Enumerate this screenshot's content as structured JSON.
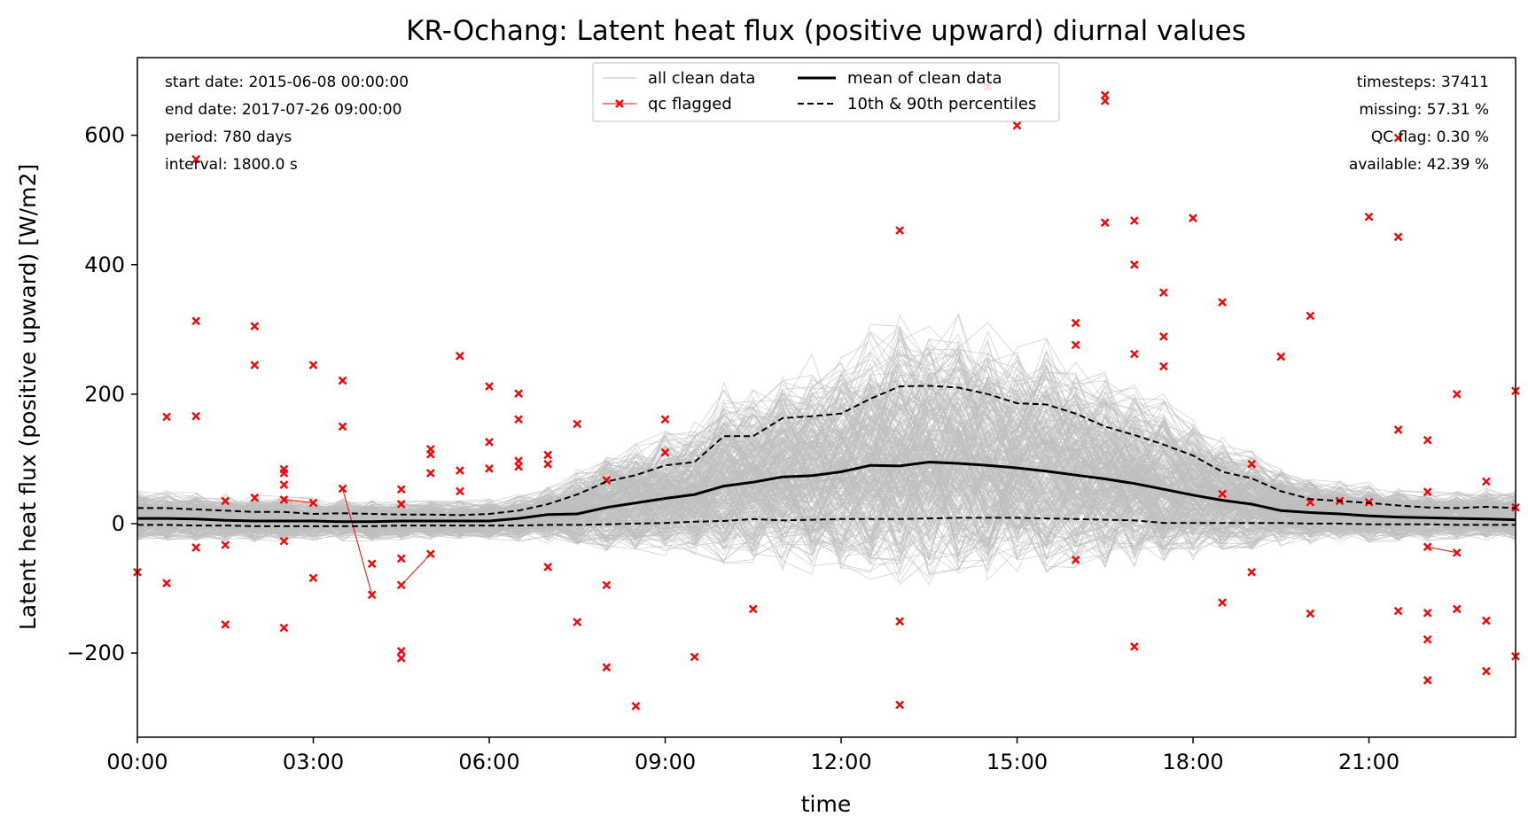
{
  "colors": {
    "clean": "#bfbfbf",
    "flagged": "#ff0000",
    "mean": "#000000",
    "percentile": "#000000"
  },
  "chart_data": {
    "type": "line",
    "title": "KR-Ochang: Latent heat flux (positive upward) diurnal values",
    "xlabel": "time",
    "ylabel": "Latent heat flux (positive upward) [W/m2]",
    "xlim": [
      0,
      23.5
    ],
    "ylim": [
      -330,
      720
    ],
    "x_ticks": [
      {
        "value": 0,
        "label": "00:00"
      },
      {
        "value": 3,
        "label": "03:00"
      },
      {
        "value": 6,
        "label": "06:00"
      },
      {
        "value": 9,
        "label": "09:00"
      },
      {
        "value": 12,
        "label": "12:00"
      },
      {
        "value": 15,
        "label": "15:00"
      },
      {
        "value": 18,
        "label": "18:00"
      },
      {
        "value": 21,
        "label": "21:00"
      }
    ],
    "y_ticks": [
      {
        "value": -200,
        "label": "−200"
      },
      {
        "value": 0,
        "label": "0"
      },
      {
        "value": 200,
        "label": "200"
      },
      {
        "value": 400,
        "label": "400"
      },
      {
        "value": 600,
        "label": "600"
      }
    ],
    "grid": false,
    "legend": {
      "placement": "top-center",
      "entries": [
        {
          "label": "all clean data",
          "style": "clean"
        },
        {
          "label": "qc flagged",
          "style": "flagged"
        },
        {
          "label": "mean of clean data",
          "style": "mean"
        },
        {
          "label": "10th & 90th percentiles",
          "style": "percentile"
        }
      ]
    },
    "info_left": [
      "start date: 2015-06-08 00:00:00",
      "end date: 2017-07-26 09:00:00",
      "period: 780 days",
      "interval: 1800.0 s"
    ],
    "info_right": [
      "timesteps: 37411",
      "missing: 57.31 %",
      "QC flag: 0.30 %",
      "available: 42.39 %"
    ],
    "x": [
      0,
      0.5,
      1,
      1.5,
      2,
      2.5,
      3,
      3.5,
      4,
      4.5,
      5,
      5.5,
      6,
      6.5,
      7,
      7.5,
      8,
      8.5,
      9,
      9.5,
      10,
      10.5,
      11,
      11.5,
      12,
      12.5,
      13,
      13.5,
      14,
      14.5,
      15,
      15.5,
      16,
      16.5,
      17,
      17.5,
      18,
      18.5,
      19,
      19.5,
      20,
      20.5,
      21,
      21.5,
      22,
      22.5,
      23,
      23.5
    ],
    "series": [
      {
        "name": "mean of clean data",
        "values": [
          8,
          8,
          7,
          5,
          4,
          4,
          4,
          3,
          3,
          4,
          4,
          4,
          4,
          8,
          14,
          15,
          25,
          32,
          39,
          45,
          58,
          64,
          72,
          74,
          80,
          90,
          89,
          95,
          93,
          90,
          86,
          81,
          75,
          69,
          62,
          53,
          44,
          36,
          30,
          20,
          17,
          15,
          12,
          10,
          9,
          8,
          7,
          6
        ]
      },
      {
        "name": "10th percentile",
        "values": [
          -2,
          -2,
          -3,
          -3,
          -4,
          -4,
          -4,
          -4,
          -4,
          -3,
          -3,
          -3,
          -3,
          -3,
          -2,
          -2,
          -1,
          0,
          1,
          3,
          4,
          7,
          5,
          6,
          7,
          7,
          7,
          8,
          9,
          9,
          9,
          8,
          7,
          6,
          5,
          1,
          1,
          1,
          1,
          1,
          0,
          0,
          -1,
          -1,
          -1,
          -2,
          -2,
          -2
        ]
      },
      {
        "name": "90th percentile",
        "values": [
          24,
          24,
          22,
          20,
          18,
          18,
          15,
          16,
          15,
          14,
          14,
          13,
          15,
          20,
          30,
          45,
          65,
          75,
          90,
          95,
          135,
          135,
          163,
          166,
          170,
          193,
          212,
          213,
          210,
          200,
          186,
          184,
          170,
          150,
          137,
          122,
          105,
          80,
          70,
          50,
          38,
          35,
          32,
          28,
          25,
          24,
          26,
          24
        ]
      }
    ],
    "flagged_points": [
      [
        0,
        -75
      ],
      [
        0.5,
        165
      ],
      [
        0.5,
        -92
      ],
      [
        1,
        563
      ],
      [
        1,
        313
      ],
      [
        1,
        166
      ],
      [
        1,
        -37
      ],
      [
        1.5,
        35
      ],
      [
        1.5,
        -33
      ],
      [
        1.5,
        -156
      ],
      [
        2,
        305
      ],
      [
        2,
        245
      ],
      [
        2,
        40
      ],
      [
        2.5,
        84
      ],
      [
        2.5,
        78
      ],
      [
        2.5,
        60
      ],
      [
        2.5,
        37
      ],
      [
        2.5,
        -27
      ],
      [
        2.5,
        -161
      ],
      [
        3,
        245
      ],
      [
        3,
        32
      ],
      [
        3,
        -84
      ],
      [
        3.5,
        221
      ],
      [
        3.5,
        150
      ],
      [
        3.5,
        54
      ],
      [
        4,
        -62
      ],
      [
        4,
        -110
      ],
      [
        4.5,
        53
      ],
      [
        4.5,
        30
      ],
      [
        4.5,
        -54
      ],
      [
        4.5,
        -95
      ],
      [
        4.5,
        -197
      ],
      [
        4.5,
        -208
      ],
      [
        5,
        115
      ],
      [
        5,
        107
      ],
      [
        5,
        78
      ],
      [
        5,
        -47
      ],
      [
        5.5,
        259
      ],
      [
        5.5,
        82
      ],
      [
        5.5,
        50
      ],
      [
        6,
        212
      ],
      [
        6,
        126
      ],
      [
        6,
        85
      ],
      [
        6.5,
        201
      ],
      [
        6.5,
        161
      ],
      [
        6.5,
        97
      ],
      [
        6.5,
        88
      ],
      [
        7,
        106
      ],
      [
        7,
        92
      ],
      [
        7,
        -67
      ],
      [
        7.5,
        154
      ],
      [
        7.5,
        -152
      ],
      [
        8,
        67
      ],
      [
        8,
        -95
      ],
      [
        8,
        -222
      ],
      [
        8.5,
        -282
      ],
      [
        9,
        161
      ],
      [
        9,
        110
      ],
      [
        9.5,
        -206
      ],
      [
        10.5,
        -132
      ],
      [
        13,
        453
      ],
      [
        13,
        -151
      ],
      [
        13,
        -280
      ],
      [
        14.5,
        675
      ],
      [
        15,
        615
      ],
      [
        16,
        310
      ],
      [
        16,
        276
      ],
      [
        16,
        -56
      ],
      [
        16.5,
        662
      ],
      [
        16.5,
        653
      ],
      [
        16.5,
        465
      ],
      [
        17,
        468
      ],
      [
        17,
        400
      ],
      [
        17,
        262
      ],
      [
        17,
        -190
      ],
      [
        17.5,
        357
      ],
      [
        17.5,
        289
      ],
      [
        17.5,
        243
      ],
      [
        18,
        472
      ],
      [
        18.5,
        342
      ],
      [
        18.5,
        46
      ],
      [
        18.5,
        -122
      ],
      [
        19,
        92
      ],
      [
        19,
        -75
      ],
      [
        19.5,
        258
      ],
      [
        20,
        321
      ],
      [
        20,
        33
      ],
      [
        20,
        -139
      ],
      [
        20.5,
        35
      ],
      [
        21,
        474
      ],
      [
        21,
        33
      ],
      [
        21.5,
        596
      ],
      [
        21.5,
        443
      ],
      [
        21.5,
        145
      ],
      [
        21.5,
        -135
      ],
      [
        22,
        129
      ],
      [
        22,
        49
      ],
      [
        22,
        -36
      ],
      [
        22,
        -138
      ],
      [
        22,
        -179
      ],
      [
        22,
        -242
      ],
      [
        22.5,
        200
      ],
      [
        22.5,
        -45
      ],
      [
        22.5,
        -132
      ],
      [
        23,
        65
      ],
      [
        23,
        -150
      ],
      [
        23,
        -228
      ],
      [
        23.5,
        205
      ],
      [
        23.5,
        25
      ],
      [
        23.5,
        -205
      ]
    ],
    "flagged_links": [
      [
        [
          2.5,
          37
        ],
        [
          3,
          32
        ]
      ],
      [
        [
          3.5,
          54
        ],
        [
          4,
          -110
        ]
      ],
      [
        [
          4.5,
          -95
        ],
        [
          5,
          -47
        ]
      ],
      [
        [
          22,
          -36
        ],
        [
          22.5,
          -45
        ]
      ]
    ]
  }
}
